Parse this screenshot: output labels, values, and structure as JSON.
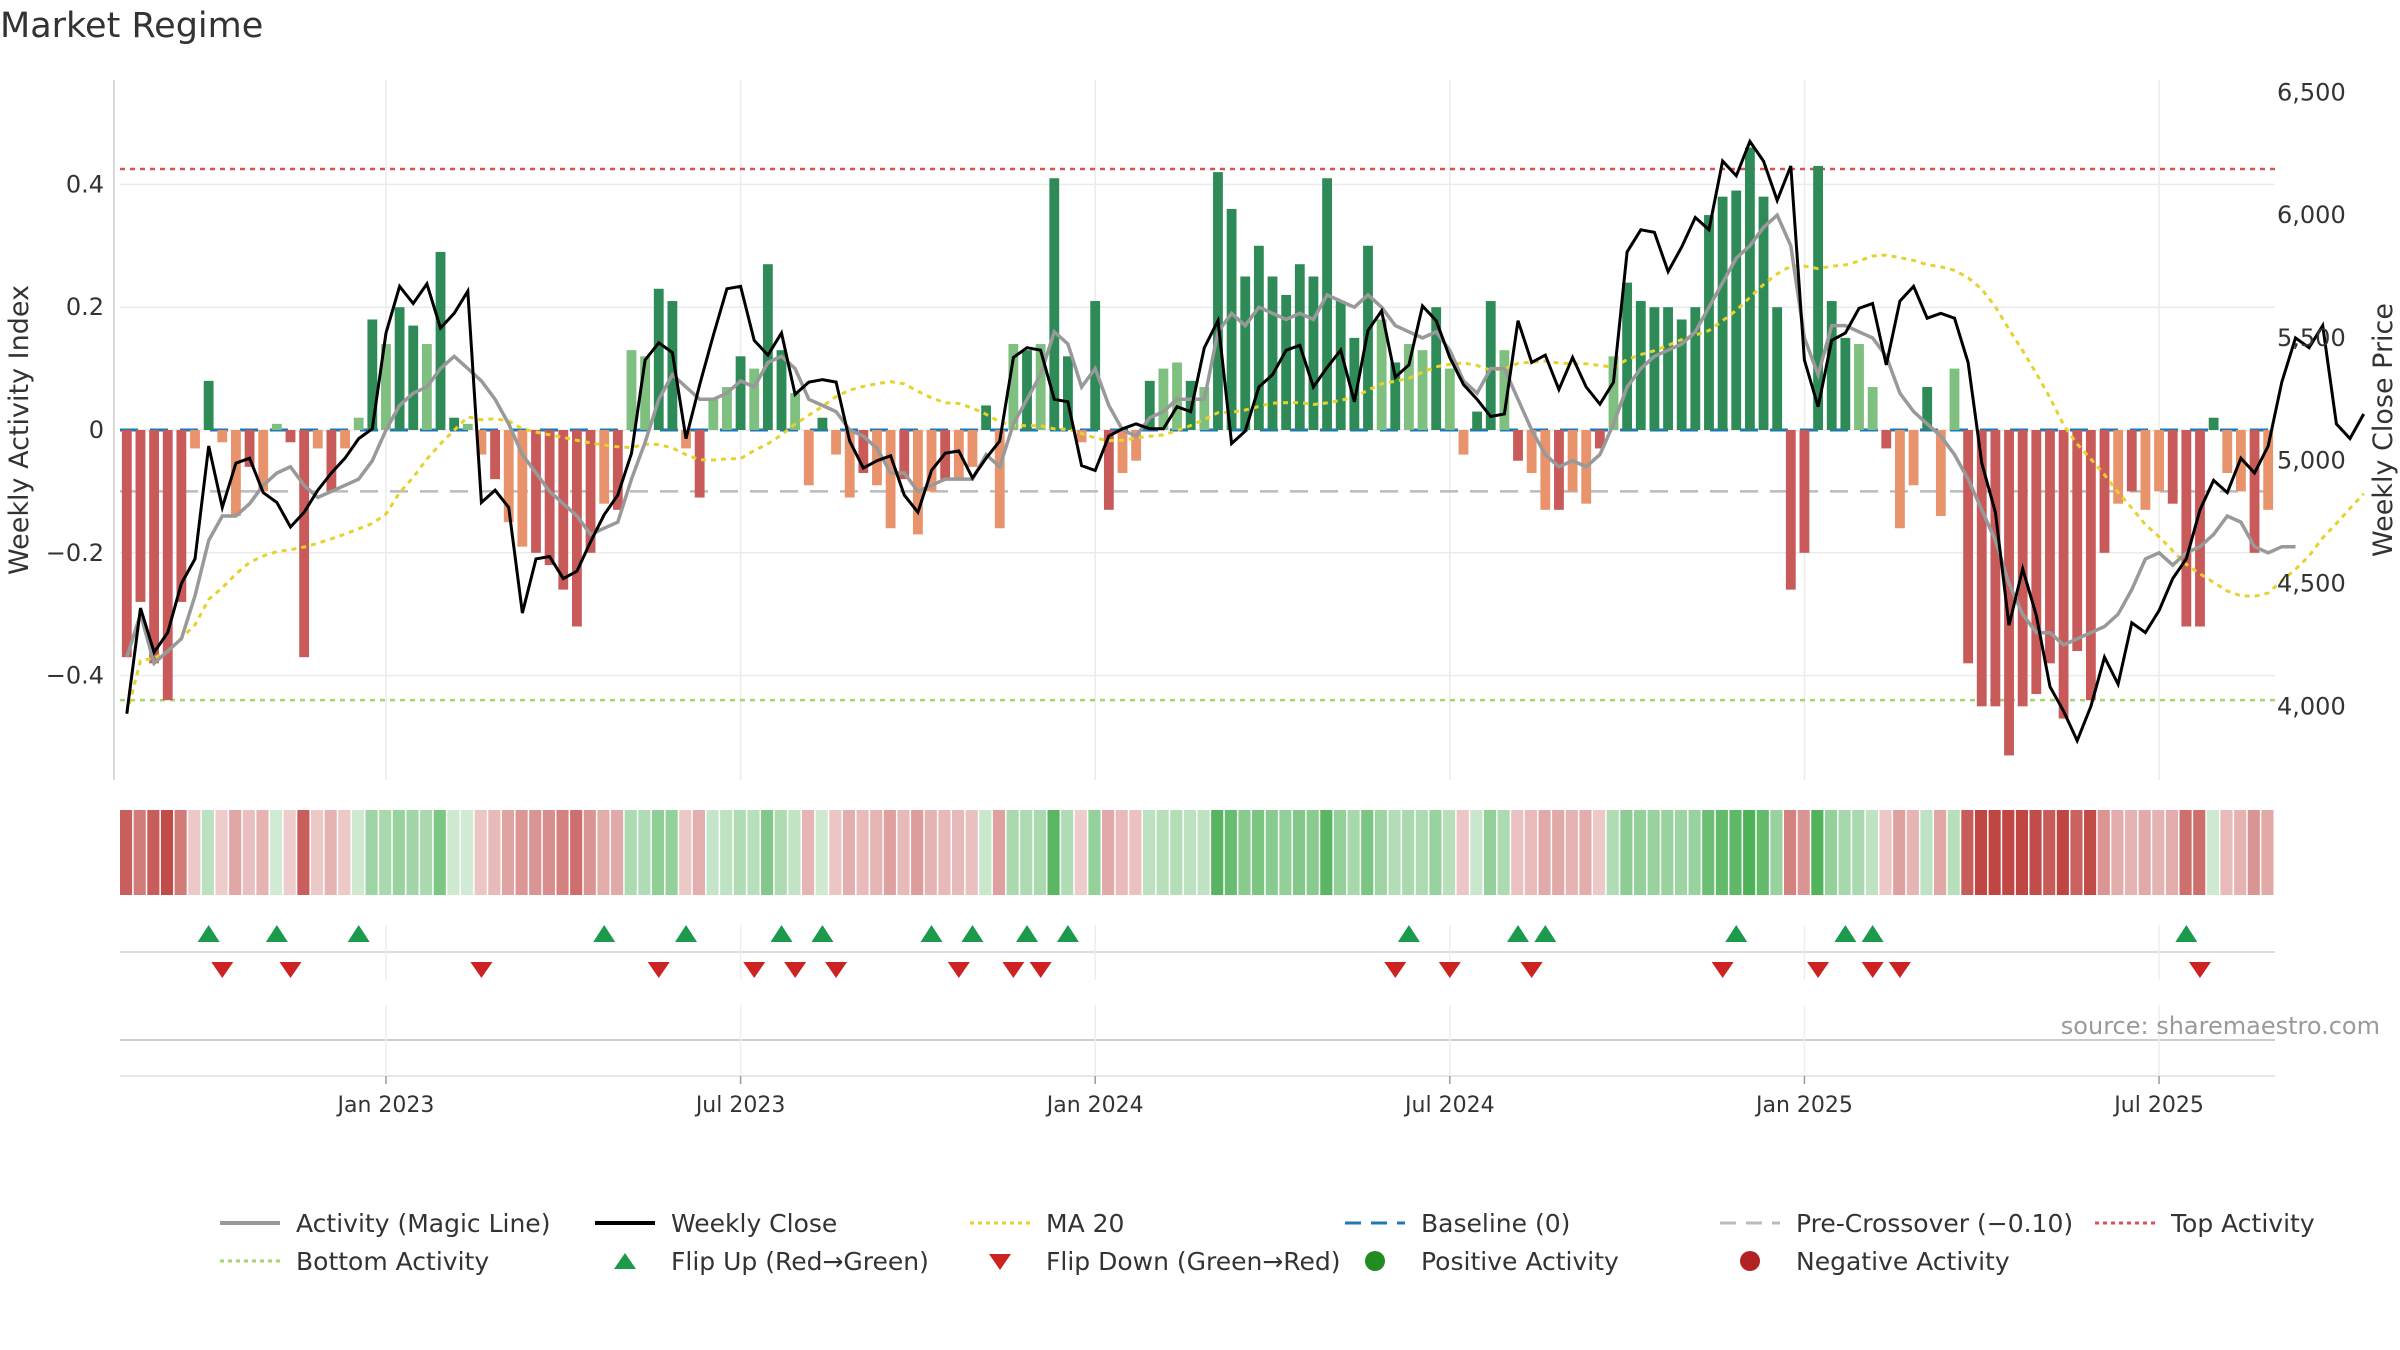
{
  "title": "Market Regime",
  "source": "source: sharemaestro.com",
  "colors": {
    "dark_green": "#2e8b57",
    "light_green": "#7fbf7f",
    "dark_red": "#c85a5a",
    "light_red": "#e8936b",
    "close_line": "#000000",
    "magic_line": "#999999",
    "ma20": "#e6d22e",
    "baseline": "#1f77b4",
    "pre_crossover": "#bbbbbb",
    "top_activity": "#d9534f",
    "bottom_activity": "#a4d46c",
    "flip_up": "#1a9a4a",
    "flip_down": "#cc2222"
  },
  "chart_data": {
    "type": "bar",
    "left_axis": {
      "label": "Weekly Activity Index",
      "ylim": [
        -0.57,
        0.57
      ],
      "ticks": [
        0.4,
        0.2,
        0,
        -0.2,
        -0.4
      ],
      "tick_labels": [
        "0.4",
        "0.2",
        "0",
        "−0.2",
        "−0.4"
      ]
    },
    "right_axis": {
      "label": "Weekly Close Price",
      "ylim": [
        3700,
        6550
      ],
      "ticks": [
        6500,
        6000,
        5500,
        5000,
        4500,
        4000
      ],
      "tick_labels": [
        "6,500",
        "6,000",
        "5,500",
        "5,000",
        "4,500",
        "4,000"
      ]
    },
    "x_tick_labels": [
      "Jan 2023",
      "Jul 2023",
      "Jan 2024",
      "Jul 2024",
      "Jan 2025",
      "Jul 2025"
    ],
    "x_tick_weeks": [
      19,
      45,
      71,
      97,
      123,
      149
    ],
    "week_count": 158,
    "reference_lines": {
      "baseline": 0,
      "pre_crossover": -0.1,
      "top_activity": 0.425,
      "bottom_activity": -0.44
    },
    "activity": [
      -0.37,
      -0.28,
      -0.38,
      -0.44,
      -0.28,
      -0.03,
      0.08,
      -0.02,
      -0.14,
      -0.06,
      -0.1,
      0.01,
      -0.02,
      -0.37,
      -0.03,
      -0.1,
      -0.03,
      0.02,
      0.18,
      0.14,
      0.2,
      0.17,
      0.14,
      0.29,
      0.02,
      0.01,
      -0.04,
      -0.08,
      -0.15,
      -0.19,
      -0.2,
      -0.22,
      -0.26,
      -0.32,
      -0.2,
      -0.12,
      -0.13,
      0.13,
      0.12,
      0.23,
      0.21,
      -0.03,
      -0.11,
      0.05,
      0.07,
      0.12,
      0.1,
      0.27,
      0.13,
      0.06,
      -0.09,
      0.02,
      -0.04,
      -0.11,
      -0.07,
      -0.09,
      -0.16,
      -0.08,
      -0.17,
      -0.1,
      -0.08,
      -0.08,
      -0.06,
      0.04,
      -0.16,
      0.14,
      0.13,
      0.14,
      0.41,
      0.12,
      -0.02,
      0.21,
      -0.13,
      -0.07,
      -0.05,
      0.08,
      0.1,
      0.11,
      0.08,
      0.07,
      0.42,
      0.36,
      0.25,
      0.3,
      0.25,
      0.22,
      0.27,
      0.25,
      0.41,
      0.21,
      0.15,
      0.3,
      0.18,
      0.11,
      0.14,
      0.13,
      0.2,
      0.1,
      -0.04,
      0.03,
      0.21,
      0.13,
      -0.05,
      -0.07,
      -0.13,
      -0.13,
      -0.1,
      -0.12,
      -0.03,
      0.12,
      0.24,
      0.21,
      0.2,
      0.2,
      0.18,
      0.2,
      0.35,
      0.38,
      0.39,
      0.46,
      0.38,
      0.2,
      -0.26,
      -0.2,
      0.43,
      0.21,
      0.15,
      0.14,
      0.07,
      -0.03,
      -0.16,
      -0.09,
      0.07,
      -0.14,
      0.1,
      -0.38,
      -0.45,
      -0.45,
      -0.53,
      -0.45,
      -0.43,
      -0.38,
      -0.47,
      -0.36,
      -0.44,
      -0.2,
      -0.12,
      -0.1,
      -0.13,
      -0.1,
      -0.12,
      -0.32,
      -0.32,
      0.02,
      -0.07,
      -0.1,
      -0.2,
      -0.13
    ],
    "close": [
      3970,
      4400,
      4220,
      4300,
      4500,
      4600,
      5060,
      4810,
      4990,
      5010,
      4870,
      4830,
      4730,
      4790,
      4880,
      4950,
      5010,
      5090,
      5130,
      5520,
      5710,
      5640,
      5720,
      5540,
      5600,
      5690,
      4830,
      4880,
      4810,
      4380,
      4600,
      4610,
      4520,
      4550,
      4670,
      4780,
      4860,
      5030,
      5410,
      5480,
      5440,
      5090,
      5310,
      5510,
      5700,
      5710,
      5490,
      5430,
      5520,
      5270,
      5320,
      5330,
      5320,
      5080,
      4970,
      5000,
      5020,
      4860,
      4790,
      4960,
      5030,
      5040,
      4930,
      5010,
      5080,
      5420,
      5460,
      5450,
      5250,
      5240,
      4980,
      4960,
      5100,
      5130,
      5150,
      5130,
      5130,
      5220,
      5200,
      5460,
      5570,
      5070,
      5120,
      5300,
      5350,
      5450,
      5470,
      5300,
      5380,
      5450,
      5240,
      5530,
      5610,
      5340,
      5390,
      5630,
      5570,
      5420,
      5310,
      5250,
      5180,
      5190,
      5570,
      5400,
      5430,
      5290,
      5420,
      5300,
      5230,
      5320,
      5850,
      5940,
      5930,
      5770,
      5870,
      5990,
      5940,
      6220,
      6160,
      6300,
      6220,
      6060,
      6200,
      5410,
      5220,
      5490,
      5520,
      5620,
      5640,
      5390,
      5650,
      5710,
      5580,
      5600,
      5580,
      5400,
      4990,
      4790,
      4330,
      4560,
      4370,
      4080,
      3980,
      3860,
      4000,
      4200,
      4090,
      4340,
      4300,
      4390,
      4520,
      4600,
      4800,
      4920,
      4870,
      5010,
      4950,
      5060,
      5320,
      5500,
      5460,
      5550,
      5150,
      5090,
      5190
    ],
    "magic_line": [
      -0.37,
      -0.3,
      -0.38,
      -0.36,
      -0.34,
      -0.27,
      -0.18,
      -0.14,
      -0.14,
      -0.12,
      -0.09,
      -0.07,
      -0.06,
      -0.09,
      -0.11,
      -0.1,
      -0.09,
      -0.08,
      -0.05,
      0.0,
      0.04,
      0.06,
      0.07,
      0.1,
      0.12,
      0.1,
      0.08,
      0.05,
      0.01,
      -0.04,
      -0.07,
      -0.1,
      -0.12,
      -0.14,
      -0.17,
      -0.16,
      -0.15,
      -0.08,
      -0.02,
      0.05,
      0.09,
      0.07,
      0.05,
      0.05,
      0.06,
      0.08,
      0.07,
      0.11,
      0.12,
      0.1,
      0.05,
      0.04,
      0.03,
      0.0,
      -0.01,
      -0.03,
      -0.07,
      -0.07,
      -0.1,
      -0.09,
      -0.08,
      -0.08,
      -0.08,
      -0.04,
      -0.06,
      0.01,
      0.05,
      0.09,
      0.16,
      0.14,
      0.07,
      0.1,
      0.04,
      0.0,
      -0.01,
      0.02,
      0.03,
      0.05,
      0.05,
      0.05,
      0.16,
      0.19,
      0.17,
      0.2,
      0.19,
      0.18,
      0.19,
      0.18,
      0.22,
      0.21,
      0.2,
      0.22,
      0.2,
      0.17,
      0.16,
      0.15,
      0.16,
      0.13,
      0.08,
      0.06,
      0.1,
      0.1,
      0.05,
      0.0,
      -0.04,
      -0.06,
      -0.05,
      -0.06,
      -0.04,
      0.01,
      0.07,
      0.1,
      0.12,
      0.13,
      0.14,
      0.16,
      0.2,
      0.24,
      0.28,
      0.3,
      0.33,
      0.35,
      0.3,
      0.15,
      0.09,
      0.17,
      0.17,
      0.16,
      0.15,
      0.12,
      0.06,
      0.03,
      0.01,
      -0.01,
      -0.04,
      -0.08,
      -0.13,
      -0.18,
      -0.25,
      -0.3,
      -0.33,
      -0.33,
      -0.35,
      -0.34,
      -0.33,
      -0.32,
      -0.3,
      -0.26,
      -0.21,
      -0.2,
      -0.22,
      -0.2,
      -0.19,
      -0.17,
      -0.14,
      -0.15,
      -0.19,
      -0.2,
      -0.19,
      -0.19
    ]
  },
  "flip_up_weeks": [
    6,
    11,
    17,
    35,
    41,
    48,
    51,
    59,
    62,
    66,
    69,
    94,
    102,
    104,
    118,
    126,
    128,
    151
  ],
  "flip_down_weeks": [
    7,
    12,
    26,
    39,
    46,
    49,
    52,
    61,
    65,
    67,
    93,
    97,
    103,
    117,
    124,
    128,
    130,
    152
  ],
  "legend": [
    {
      "label": "Activity (Magic Line)",
      "icon": "solid-line"
    },
    {
      "label": "Weekly Close",
      "icon": "solid-line"
    },
    {
      "label": "MA 20",
      "icon": "dotted-line"
    },
    {
      "label": "Baseline (0)",
      "icon": "dashed-line"
    },
    {
      "label": "Pre-Crossover (−0.10)",
      "icon": "dashed-line"
    },
    {
      "label": "Top Activity",
      "icon": "dotted-line"
    },
    {
      "label": "Bottom Activity",
      "icon": "dotted-line"
    },
    {
      "label": "Flip Up (Red→Green)",
      "icon": "triangle-up"
    },
    {
      "label": "Flip Down (Green→Red)",
      "icon": "triangle-down"
    },
    {
      "label": "Positive Activity",
      "icon": "dot"
    },
    {
      "label": "Negative Activity",
      "icon": "dot"
    }
  ]
}
